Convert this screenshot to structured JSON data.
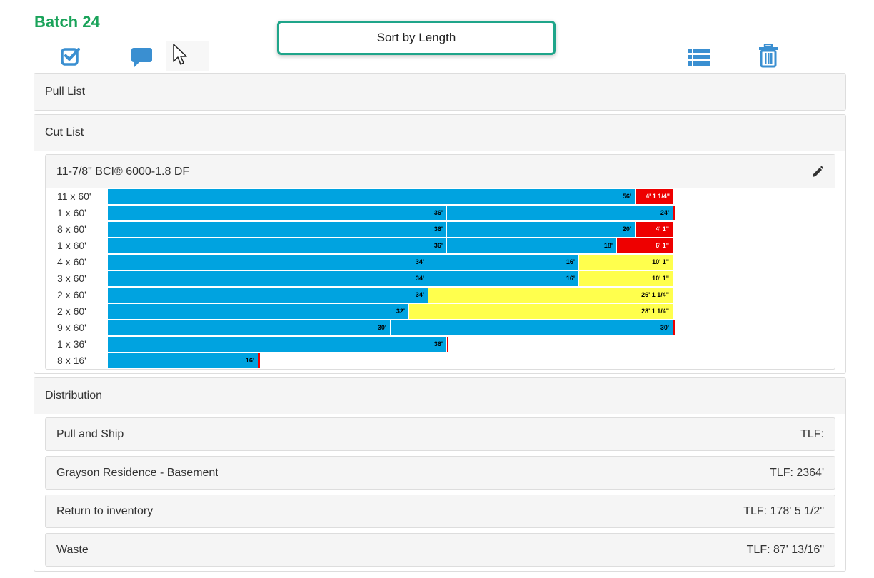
{
  "header": {
    "title": "Batch 24"
  },
  "toolbar": {
    "icons": [
      "checkbox-icon",
      "comment-icon",
      "list-icon",
      "trash-icon"
    ],
    "tooltip": "Sort by Length"
  },
  "panels": {
    "pull_list": "Pull List",
    "cut_list": "Cut List",
    "distribution": "Distribution"
  },
  "material": {
    "name": "11-7/8\" BCI® 6000-1.8 DF",
    "edit_icon": "pencil-icon"
  },
  "colors": {
    "cut": "#00a3e0",
    "return": "#ffff4d",
    "waste": "#ee0000",
    "title": "#1aa35a",
    "icon": "#3a8fd1"
  },
  "cut_rows": [
    {
      "label": "11 x 60'",
      "segments": [
        {
          "text": "56'",
          "type": "blue",
          "len": 56
        },
        {
          "text": "4' 1 1/4\"",
          "type": "red",
          "len": 4.1
        }
      ]
    },
    {
      "label": "1 x 60'",
      "segments": [
        {
          "text": "36'",
          "type": "blue",
          "len": 36
        },
        {
          "text": "24'",
          "type": "blue",
          "len": 24
        },
        {
          "text": "",
          "type": "redline",
          "len": 0.15
        }
      ]
    },
    {
      "label": "8 x 60'",
      "segments": [
        {
          "text": "36'",
          "type": "blue",
          "len": 36
        },
        {
          "text": "20'",
          "type": "blue",
          "len": 20
        },
        {
          "text": "4' 1\"",
          "type": "red",
          "len": 4.0
        }
      ]
    },
    {
      "label": "1 x 60'",
      "segments": [
        {
          "text": "36'",
          "type": "blue",
          "len": 36
        },
        {
          "text": "18'",
          "type": "blue",
          "len": 18
        },
        {
          "text": "6' 1\"",
          "type": "red",
          "len": 6.0
        }
      ]
    },
    {
      "label": "4 x 60'",
      "segments": [
        {
          "text": "34'",
          "type": "blue",
          "len": 34
        },
        {
          "text": "16'",
          "type": "blue",
          "len": 16
        },
        {
          "text": "10' 1\"",
          "type": "yellow",
          "len": 10
        }
      ]
    },
    {
      "label": "3 x 60'",
      "segments": [
        {
          "text": "34'",
          "type": "blue",
          "len": 34
        },
        {
          "text": "16'",
          "type": "blue",
          "len": 16
        },
        {
          "text": "10' 1\"",
          "type": "yellow",
          "len": 10
        }
      ]
    },
    {
      "label": "2 x 60'",
      "segments": [
        {
          "text": "34'",
          "type": "blue",
          "len": 34
        },
        {
          "text": "26' 1 1/4\"",
          "type": "yellow",
          "len": 26
        }
      ]
    },
    {
      "label": "2 x 60'",
      "segments": [
        {
          "text": "32'",
          "type": "blue",
          "len": 32
        },
        {
          "text": "28' 1 1/4\"",
          "type": "yellow",
          "len": 28
        }
      ]
    },
    {
      "label": "9 x 60'",
      "segments": [
        {
          "text": "30'",
          "type": "blue",
          "len": 30
        },
        {
          "text": "30'",
          "type": "blue",
          "len": 30
        },
        {
          "text": "",
          "type": "redline",
          "len": 0.15
        }
      ]
    },
    {
      "label": "1 x 36'",
      "segments": [
        {
          "text": "36'",
          "type": "blue",
          "len": 36
        },
        {
          "text": "",
          "type": "redline",
          "len": 0.15
        }
      ]
    },
    {
      "label": "8 x 16'",
      "segments": [
        {
          "text": "16'",
          "type": "blue",
          "len": 16
        },
        {
          "text": "",
          "type": "redline",
          "len": 0.15
        }
      ]
    }
  ],
  "distribution": [
    {
      "name": "Pull and Ship",
      "tlf": "TLF:"
    },
    {
      "name": "Grayson Residence - Basement",
      "tlf": "TLF: 2364'"
    },
    {
      "name": "Return to inventory",
      "tlf": "TLF: 178' 5 1/2\""
    },
    {
      "name": "Waste",
      "tlf": "TLF: 87' 13/16\""
    }
  ]
}
